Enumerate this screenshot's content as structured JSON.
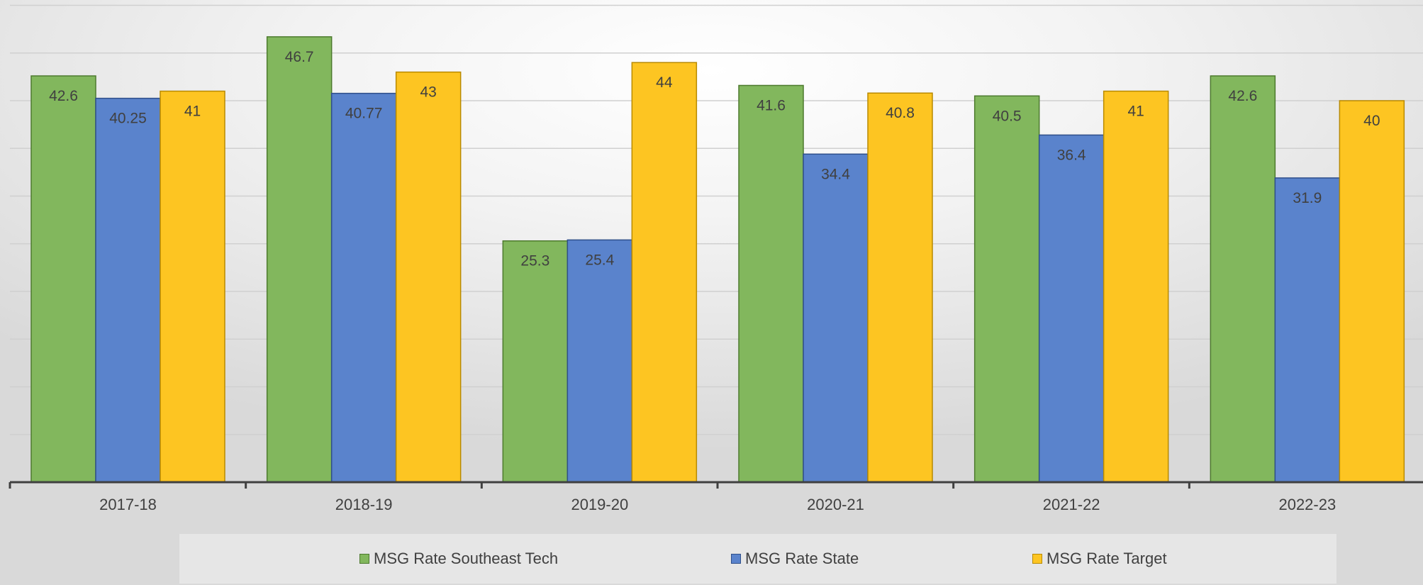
{
  "chart_data": {
    "type": "bar",
    "title": "",
    "xlabel": "",
    "ylabel": "",
    "categories": [
      "2017-18",
      "2018-19",
      "2019-20",
      "2020-21",
      "2021-22",
      "2022-23"
    ],
    "series": [
      {
        "name": "MSG Rate Southeast Tech",
        "values": [
          42.6,
          46.7,
          25.3,
          41.6,
          40.5,
          42.6
        ],
        "color": "#82b75d",
        "stroke": "#4d7a2e"
      },
      {
        "name": "MSG Rate State",
        "values": [
          40.25,
          40.77,
          25.4,
          34.4,
          36.4,
          31.9
        ],
        "color": "#5a83cc",
        "stroke": "#2f4f8a"
      },
      {
        "name": "MSG Rate Target",
        "values": [
          41,
          43,
          44,
          40.8,
          41,
          40
        ],
        "color": "#fdc522",
        "stroke": "#b98a00"
      }
    ],
    "ylim": [
      0,
      50
    ],
    "grid": true,
    "legend": "bottom"
  }
}
